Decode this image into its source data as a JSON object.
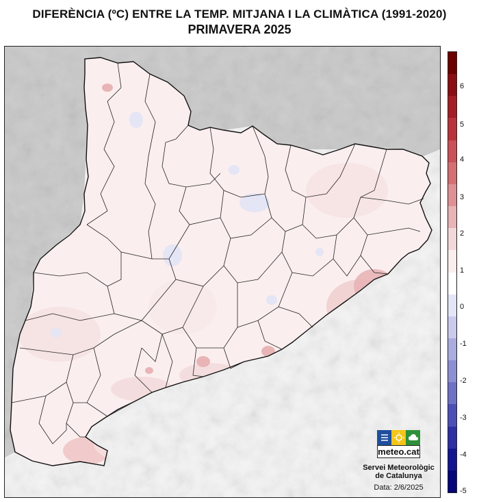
{
  "title": "DIFERÈNCIA (ºC) ENTRE LA TEMP. MITJANA I LA CLIMÀTICA (1991-2020)",
  "subtitle": "PRIMAVERA 2025",
  "logo": {
    "text": "meteo.cat"
  },
  "organization": {
    "line1": "Servei Meteorològic",
    "line2": "de Catalunya"
  },
  "date_label": "Data: 2/6/2025",
  "legend": {
    "labels": [
      "6",
      "5",
      "4",
      "3",
      "2",
      "1",
      "0",
      "-1",
      "-2",
      "-3",
      "-4",
      "-5"
    ],
    "colors": [
      "#6b0000",
      "#8a0f12",
      "#a31f25",
      "#b8343a",
      "#c85257",
      "#d46f73",
      "#de9194",
      "#e8b4b6",
      "#f3d8d9",
      "#fbeeee",
      "#ffffff",
      "#e4e5f5",
      "#c9caec",
      "#aaacdf",
      "#8d8fd3",
      "#6f71c5",
      "#4d4fb5",
      "#2d2fa3",
      "#14168f",
      "#05067a"
    ]
  },
  "colors": {
    "land_base": "#f9e7e7",
    "sea": "#f4f4f4",
    "border": "#111111",
    "relief": "#cfcfcf"
  }
}
